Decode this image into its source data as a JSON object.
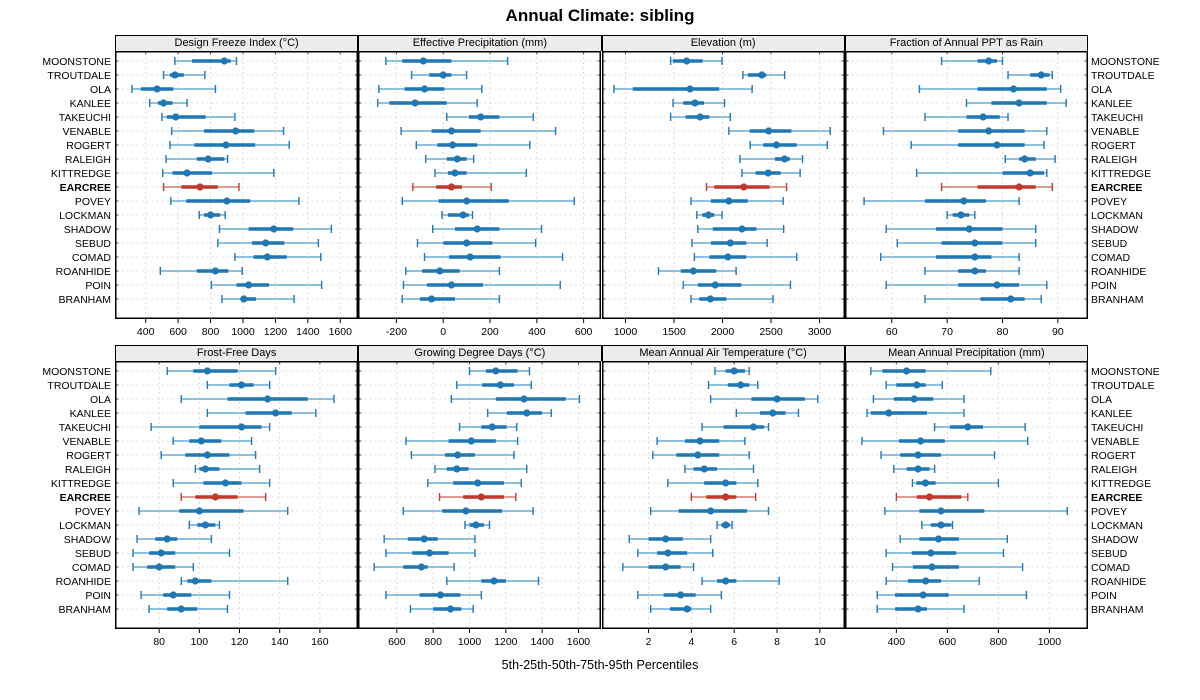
{
  "title": "Annual Climate: sibling",
  "caption": "5th-25th-50th-75th-95th Percentiles",
  "colors": {
    "series": "#1f77b4",
    "series_light": "#8fc1de",
    "highlight": "#c0392b",
    "highlight_light": "#dd9b93",
    "header_bg": "#ececec",
    "grid": "#d9d9d9",
    "row_guide": "#dedede",
    "border": "#000000"
  },
  "chart_data": {
    "type": "scatter",
    "variant": "horizontal percentile intervals (5th-25th-50th-75th-95th), trellis of 8 panels",
    "legend_position": "none",
    "grid": "on",
    "stations": [
      "MOONSTONE",
      "TROUTDALE",
      "OLA",
      "KANLEE",
      "TAKEUCHI",
      "VENABLE",
      "ROGERT",
      "RALEIGH",
      "KITTREDGE",
      "EARCREE",
      "POVEY",
      "LOCKMAN",
      "SHADOW",
      "SEBUD",
      "COMAD",
      "ROANHIDE",
      "POIN",
      "BRANHAM"
    ],
    "highlight_station": "EARCREE",
    "panels": [
      {
        "title": "Design Freeze Index (°C)",
        "ticks": [
          400,
          600,
          800,
          1000,
          1200,
          1400,
          1600
        ],
        "domain": [
          260,
          1660
        ],
        "values": [
          [
            580,
            685,
            885,
            925,
            960
          ],
          [
            510,
            550,
            580,
            635,
            765
          ],
          [
            315,
            370,
            470,
            570,
            830
          ],
          [
            425,
            475,
            510,
            565,
            655
          ],
          [
            500,
            530,
            585,
            770,
            950
          ],
          [
            560,
            760,
            955,
            1070,
            1250
          ],
          [
            550,
            700,
            895,
            1075,
            1285
          ],
          [
            525,
            715,
            785,
            885,
            905
          ],
          [
            505,
            565,
            655,
            810,
            1190
          ],
          [
            510,
            620,
            735,
            845,
            975
          ],
          [
            555,
            650,
            900,
            1045,
            1345
          ],
          [
            730,
            760,
            800,
            860,
            890
          ],
          [
            855,
            1035,
            1190,
            1310,
            1545
          ],
          [
            845,
            1055,
            1140,
            1255,
            1465
          ],
          [
            950,
            1065,
            1150,
            1270,
            1480
          ],
          [
            490,
            715,
            830,
            910,
            995
          ],
          [
            805,
            960,
            1035,
            1160,
            1485
          ],
          [
            870,
            985,
            1005,
            1080,
            1315
          ]
        ]
      },
      {
        "title": "Effective Precipitation (mm)",
        "ticks": [
          -200,
          0,
          200,
          400,
          600
        ],
        "domain": [
          -330,
          640
        ],
        "values": [
          [
            -245,
            -175,
            -85,
            35,
            275
          ],
          [
            -135,
            -60,
            0,
            35,
            100
          ],
          [
            -275,
            -165,
            -80,
            5,
            165
          ],
          [
            -280,
            -230,
            -120,
            15,
            145
          ],
          [
            15,
            110,
            160,
            240,
            385
          ],
          [
            -180,
            -50,
            35,
            160,
            480
          ],
          [
            -115,
            -25,
            40,
            145,
            370
          ],
          [
            -75,
            15,
            60,
            100,
            130
          ],
          [
            -35,
            20,
            50,
            100,
            355
          ],
          [
            -130,
            -30,
            35,
            80,
            205
          ],
          [
            -175,
            -20,
            100,
            280,
            560
          ],
          [
            -5,
            20,
            85,
            110,
            125
          ],
          [
            -45,
            50,
            145,
            240,
            420
          ],
          [
            -110,
            0,
            100,
            210,
            395
          ],
          [
            -80,
            25,
            115,
            245,
            510
          ],
          [
            -160,
            -90,
            -15,
            70,
            240
          ],
          [
            -170,
            -70,
            35,
            170,
            500
          ],
          [
            -175,
            -100,
            -50,
            50,
            240
          ]
        ]
      },
      {
        "title": "Elevation (m)",
        "ticks": [
          1000,
          1500,
          2000,
          2500,
          3000
        ],
        "domain": [
          840,
          3180
        ],
        "values": [
          [
            1465,
            1490,
            1630,
            1795,
            1995
          ],
          [
            2210,
            2260,
            2405,
            2450,
            2640
          ],
          [
            880,
            1075,
            1665,
            1965,
            2305
          ],
          [
            1490,
            1595,
            1715,
            1810,
            2020
          ],
          [
            1465,
            1620,
            1770,
            1865,
            2080
          ],
          [
            2065,
            2280,
            2475,
            2710,
            3110
          ],
          [
            2285,
            2420,
            2555,
            2765,
            3080
          ],
          [
            2180,
            2540,
            2640,
            2695,
            2825
          ],
          [
            2200,
            2340,
            2470,
            2600,
            2800
          ],
          [
            1835,
            1915,
            2220,
            2485,
            2660
          ],
          [
            1675,
            1880,
            2065,
            2260,
            2625
          ],
          [
            1735,
            1790,
            1855,
            1915,
            1995
          ],
          [
            1745,
            1900,
            2200,
            2350,
            2630
          ],
          [
            1685,
            1880,
            2080,
            2245,
            2460
          ],
          [
            1710,
            1865,
            2055,
            2245,
            2765
          ],
          [
            1340,
            1570,
            1700,
            1935,
            2140
          ],
          [
            1595,
            1745,
            1925,
            2195,
            2700
          ],
          [
            1675,
            1760,
            1875,
            2040,
            2520
          ]
        ]
      },
      {
        "title": "Fraction of Annual PPT as Rain",
        "ticks": [
          60,
          70,
          80,
          90
        ],
        "domain": [
          53,
          94
        ],
        "values": [
          [
            69,
            75.5,
            77.5,
            79,
            80
          ],
          [
            81,
            85,
            87,
            88.5,
            89
          ],
          [
            65,
            75.5,
            82,
            88,
            90.5
          ],
          [
            73.5,
            78,
            83,
            88,
            91.5
          ],
          [
            66,
            73.5,
            76.5,
            79.5,
            81
          ],
          [
            58.5,
            72,
            77.5,
            84,
            88
          ],
          [
            63.5,
            72,
            79,
            84,
            87.5
          ],
          [
            80.5,
            83,
            84,
            86,
            89.5
          ],
          [
            64.5,
            80,
            85,
            87.5,
            88
          ],
          [
            69,
            75.5,
            83,
            86,
            89
          ],
          [
            55,
            66,
            73,
            77,
            83
          ],
          [
            70,
            71,
            72.5,
            74,
            75
          ],
          [
            59,
            68,
            74,
            80,
            86
          ],
          [
            61,
            69,
            75,
            80,
            86
          ],
          [
            58,
            68,
            75,
            78,
            83
          ],
          [
            66,
            72,
            75,
            77,
            83
          ],
          [
            59,
            72,
            79,
            83,
            88
          ],
          [
            66,
            76,
            81.5,
            84,
            87
          ]
        ]
      },
      {
        "title": "Frost-Free Days",
        "ticks": [
          80,
          100,
          120,
          140,
          160
        ],
        "domain": [
          62,
          175
        ],
        "values": [
          [
            84,
            97,
            104,
            119,
            138
          ],
          [
            104,
            115,
            121,
            127,
            135
          ],
          [
            91,
            114,
            134,
            154,
            167
          ],
          [
            104,
            123,
            138,
            146,
            158
          ],
          [
            76,
            100,
            121,
            131,
            135
          ],
          [
            87,
            95,
            101,
            111,
            126
          ],
          [
            81,
            93,
            104,
            115,
            128
          ],
          [
            98,
            100,
            103,
            110,
            130
          ],
          [
            87,
            102,
            113,
            121,
            135
          ],
          [
            91,
            98,
            108,
            119,
            133
          ],
          [
            70,
            90,
            100,
            122,
            144
          ],
          [
            95,
            99,
            103,
            108,
            110
          ],
          [
            69,
            78,
            84,
            89,
            106
          ],
          [
            67,
            75,
            81,
            88,
            115
          ],
          [
            67,
            74,
            80,
            88,
            97
          ],
          [
            91,
            94,
            98,
            106,
            144
          ],
          [
            71,
            82,
            87,
            96,
            115
          ],
          [
            75,
            84,
            91,
            99,
            114
          ]
        ]
      },
      {
        "title": "Growing Degree Days (°C)",
        "ticks": [
          600,
          800,
          1000,
          1200,
          1400,
          1600
        ],
        "domain": [
          430,
          1680
        ],
        "values": [
          [
            1000,
            1090,
            1145,
            1265,
            1330
          ],
          [
            930,
            1070,
            1170,
            1245,
            1340
          ],
          [
            900,
            1145,
            1300,
            1530,
            1605
          ],
          [
            1100,
            1205,
            1315,
            1400,
            1450
          ],
          [
            945,
            1065,
            1125,
            1205,
            1260
          ],
          [
            650,
            885,
            1010,
            1145,
            1265
          ],
          [
            680,
            865,
            935,
            1030,
            1245
          ],
          [
            810,
            875,
            930,
            995,
            1315
          ],
          [
            770,
            910,
            1045,
            1190,
            1285
          ],
          [
            835,
            965,
            1065,
            1190,
            1255
          ],
          [
            635,
            850,
            980,
            1180,
            1350
          ],
          [
            975,
            1000,
            1035,
            1080,
            1110
          ],
          [
            530,
            660,
            750,
            825,
            1030
          ],
          [
            540,
            685,
            780,
            885,
            1030
          ],
          [
            475,
            635,
            735,
            770,
            915
          ],
          [
            875,
            1065,
            1135,
            1200,
            1380
          ],
          [
            540,
            725,
            840,
            950,
            1065
          ],
          [
            675,
            800,
            895,
            955,
            1020
          ]
        ]
      },
      {
        "title": "Mean Annual Air Temperature (°C)",
        "ticks": [
          2,
          4,
          6,
          8,
          10
        ],
        "domain": [
          0.2,
          10.8
        ],
        "values": [
          [
            5.1,
            5.6,
            6.0,
            6.5,
            6.7
          ],
          [
            4.8,
            5.7,
            6.3,
            6.7,
            7.1
          ],
          [
            4.9,
            6.8,
            8.0,
            9.3,
            9.9
          ],
          [
            6.1,
            7.2,
            7.8,
            8.4,
            9.0
          ],
          [
            4.5,
            5.5,
            6.9,
            7.4,
            7.6
          ],
          [
            2.4,
            3.7,
            4.4,
            5.3,
            6.5
          ],
          [
            2.2,
            3.3,
            4.3,
            5.3,
            6.7
          ],
          [
            3.7,
            4.1,
            4.6,
            5.2,
            6.9
          ],
          [
            2.9,
            4.6,
            5.6,
            6.1,
            7.1
          ],
          [
            4.0,
            4.7,
            5.6,
            6.1,
            7.0
          ],
          [
            2.1,
            3.4,
            4.9,
            6.6,
            7.6
          ],
          [
            5.2,
            5.4,
            5.6,
            5.8,
            5.9
          ],
          [
            1.1,
            2.0,
            2.8,
            3.6,
            4.9
          ],
          [
            1.5,
            2.4,
            2.9,
            3.8,
            5.0
          ],
          [
            0.8,
            2.0,
            2.8,
            3.5,
            4.1
          ],
          [
            4.5,
            5.2,
            5.6,
            6.1,
            8.1
          ],
          [
            1.5,
            2.7,
            3.5,
            4.2,
            5.4
          ],
          [
            2.1,
            3.0,
            3.8,
            4.0,
            4.9
          ]
        ]
      },
      {
        "title": "Mean Annual Precipitation (mm)",
        "ticks": [
          400,
          600,
          800,
          1000
        ],
        "domain": [
          230,
          1120
        ],
        "values": [
          [
            300,
            345,
            440,
            515,
            770
          ],
          [
            360,
            400,
            480,
            515,
            580
          ],
          [
            310,
            390,
            470,
            545,
            665
          ],
          [
            285,
            300,
            370,
            520,
            665
          ],
          [
            550,
            610,
            680,
            740,
            905
          ],
          [
            265,
            410,
            495,
            590,
            915
          ],
          [
            340,
            415,
            485,
            575,
            785
          ],
          [
            390,
            440,
            485,
            530,
            550
          ],
          [
            463,
            478,
            514,
            554,
            800
          ],
          [
            400,
            480,
            530,
            655,
            680
          ],
          [
            355,
            490,
            575,
            745,
            1070
          ],
          [
            500,
            535,
            575,
            615,
            620
          ],
          [
            415,
            490,
            565,
            645,
            835
          ],
          [
            360,
            460,
            535,
            635,
            820
          ],
          [
            385,
            465,
            540,
            645,
            895
          ],
          [
            360,
            445,
            515,
            575,
            725
          ],
          [
            325,
            395,
            505,
            605,
            910
          ],
          [
            325,
            395,
            485,
            520,
            665
          ]
        ]
      }
    ]
  }
}
